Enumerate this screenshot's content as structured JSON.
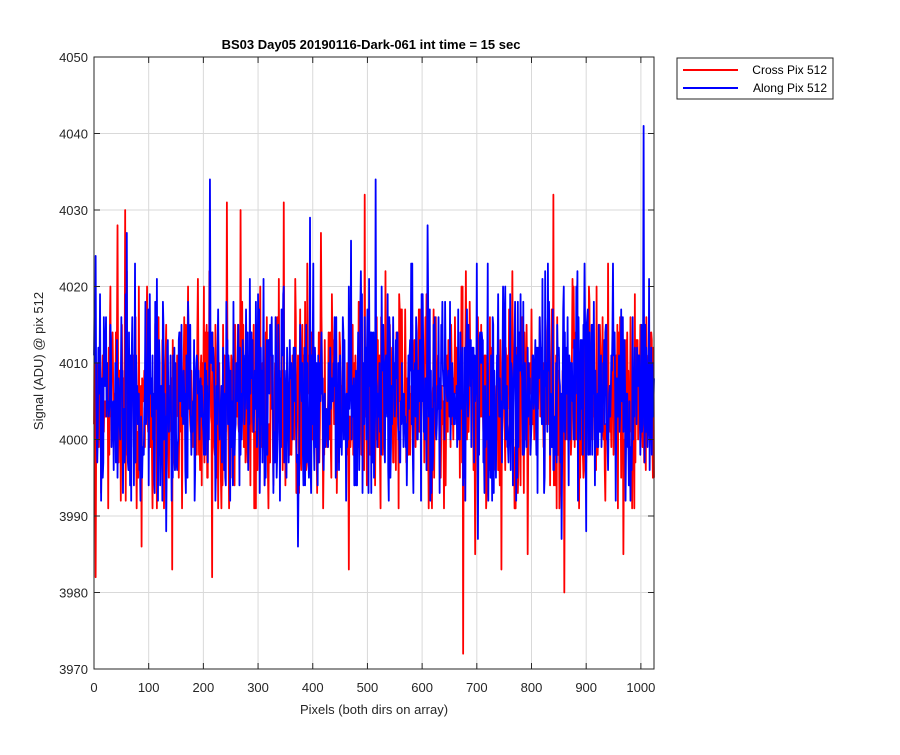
{
  "chart_data": {
    "type": "line",
    "title": "BS03 Day05 20190116-Dark-061 int time = 15 sec",
    "xlabel": "Pixels (both dirs on array)",
    "ylabel": "Signal (ADU) @ pix 512",
    "xlim": [
      0,
      1024
    ],
    "ylim": [
      3970,
      4050
    ],
    "xticks": [
      0,
      100,
      200,
      300,
      400,
      500,
      600,
      700,
      800,
      900,
      1000
    ],
    "yticks": [
      3970,
      3980,
      3990,
      4000,
      4010,
      4020,
      4030,
      4040,
      4050
    ],
    "grid": true,
    "legend_position": "outside-top-right",
    "series": [
      {
        "name": "Cross Pix 512",
        "color": "#ff0000",
        "noise_center": 4005,
        "sample_step": 1,
        "x_extremes": [
          3,
          43,
          57,
          87,
          118,
          143,
          216,
          243,
          268,
          316,
          347,
          368,
          390,
          415,
          466,
          495,
          548,
          675,
          697,
          745,
          793,
          840,
          860,
          877,
          940,
          968
        ],
        "y_extremes": [
          3982,
          4028,
          4030,
          3986,
          4016,
          3983,
          3982,
          4031,
          4030,
          4016,
          4031,
          4021,
          4023,
          4027,
          3983,
          4032,
          3997,
          3972,
          3985,
          3983,
          3985,
          4032,
          3980,
          4020,
          4023,
          3985
        ]
      },
      {
        "name": "Along Pix 512",
        "color": "#0000ff",
        "noise_center": 4006,
        "sample_step": 1,
        "x_extremes": [
          3,
          60,
          132,
          212,
          300,
          373,
          395,
          470,
          515,
          610,
          702,
          720,
          855,
          900,
          978,
          1005
        ],
        "y_extremes": [
          4024,
          4027,
          3988,
          4034,
          4019,
          3986,
          4029,
          4026,
          4034,
          4028,
          3987,
          4023,
          3987,
          3988,
          3994,
          4041
        ]
      }
    ]
  }
}
